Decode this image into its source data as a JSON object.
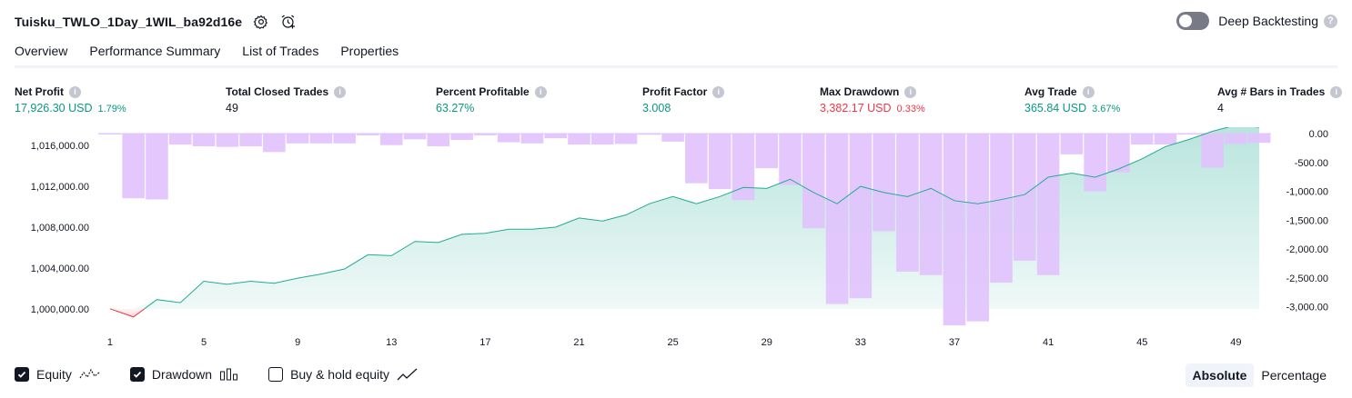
{
  "header": {
    "title": "Tuisku_TWLO_1Day_1WIL_ba92d16e",
    "deep_backtesting_label": "Deep Backtesting"
  },
  "tabs": [
    {
      "label": "Overview",
      "active": true
    },
    {
      "label": "Performance Summary"
    },
    {
      "label": "List of Trades"
    },
    {
      "label": "Properties"
    }
  ],
  "metrics": [
    {
      "label": "Net Profit",
      "value": "17,926.30 USD",
      "pct": "1.79%",
      "color": "#089981"
    },
    {
      "label": "Total Closed Trades",
      "value": "49",
      "pct": "",
      "color": "#131722"
    },
    {
      "label": "Percent Profitable",
      "value": "63.27%",
      "pct": "",
      "color": "#089981"
    },
    {
      "label": "Profit Factor",
      "value": "3.008",
      "pct": "",
      "color": "#089981"
    },
    {
      "label": "Max Drawdown",
      "value": "3,382.17 USD",
      "pct": "0.33%",
      "color": "#f23645"
    },
    {
      "label": "Avg Trade",
      "value": "365.84 USD",
      "pct": "3.67%",
      "color": "#089981"
    },
    {
      "label": "Avg # Bars in Trades",
      "value": "4",
      "pct": "",
      "color": "#131722"
    }
  ],
  "legend": {
    "equity_label": "Equity",
    "drawdown_label": "Drawdown",
    "buyhold_label": "Buy & hold equity"
  },
  "mode": {
    "absolute_label": "Absolute",
    "percentage_label": "Percentage",
    "selected": "Absolute"
  },
  "colors": {
    "equity_line": "#22ab94",
    "equity_loss": "#f23645",
    "drawdown_fill": "#e1c2fd",
    "text": "#131722"
  },
  "chart_data": {
    "type": "line",
    "x_ticks": [
      "1",
      "5",
      "9",
      "13",
      "17",
      "21",
      "25",
      "29",
      "33",
      "37",
      "41",
      "45",
      "49"
    ],
    "equity_yticks": [
      "1,000,000.00",
      "1,004,000.00",
      "1,008,000.00",
      "1,012,000.00",
      "1,016,000.00"
    ],
    "drawdown_yticks": [
      "0.00",
      "-500.00",
      "-1,000.00",
      "-1,500.00",
      "-2,000.00",
      "-2,500.00",
      "-3,000.00"
    ],
    "equity_ylim": [
      998200,
      1017800
    ],
    "drawdown_ylim": [
      -3350,
      110
    ],
    "x_range": [
      0.5,
      50.5
    ],
    "series": [
      {
        "name": "Equity",
        "x": [
          1,
          2,
          3,
          4,
          5,
          6,
          7,
          8,
          9,
          10,
          11,
          12,
          13,
          14,
          15,
          16,
          17,
          18,
          19,
          20,
          21,
          22,
          23,
          24,
          25,
          26,
          27,
          28,
          29,
          30,
          31,
          32,
          33,
          34,
          35,
          36,
          37,
          38,
          39,
          40,
          41,
          42,
          43,
          44,
          45,
          46,
          47,
          48,
          49,
          50
        ],
        "values": [
          1000000,
          999200,
          1000900,
          1000600,
          1002700,
          1002400,
          1002700,
          1002500,
          1003000,
          1003400,
          1003900,
          1005300,
          1005200,
          1006600,
          1006500,
          1007300,
          1007400,
          1007800,
          1007800,
          1008000,
          1008900,
          1008600,
          1009200,
          1010300,
          1011000,
          1010300,
          1011000,
          1011900,
          1011800,
          1012700,
          1011400,
          1010300,
          1012000,
          1011400,
          1011000,
          1011800,
          1010600,
          1010300,
          1010700,
          1011200,
          1012900,
          1013300,
          1012900,
          1013700,
          1014700,
          1015900,
          1016600,
          1017400,
          1018000,
          1017800
        ]
      },
      {
        "name": "Drawdown",
        "x": [
          1,
          2,
          3,
          4,
          5,
          6,
          7,
          8,
          9,
          10,
          11,
          12,
          13,
          14,
          15,
          16,
          17,
          18,
          19,
          20,
          21,
          22,
          23,
          24,
          25,
          26,
          27,
          28,
          29,
          30,
          31,
          32,
          33,
          34,
          35,
          36,
          37,
          38,
          39,
          40,
          41,
          42,
          43,
          44,
          45,
          46,
          47,
          48,
          49,
          50
        ],
        "values": [
          0,
          -1120,
          -1140,
          -190,
          -220,
          -230,
          -220,
          -320,
          -170,
          -170,
          -170,
          -30,
          -200,
          -100,
          -220,
          -110,
          -30,
          -150,
          -170,
          -80,
          -190,
          -190,
          -180,
          -20,
          -140,
          -860,
          -960,
          -1150,
          -600,
          -890,
          -1640,
          -2950,
          -2850,
          -1690,
          -2390,
          -2450,
          -3320,
          -3250,
          -2580,
          -2200,
          -2450,
          -360,
          -1000,
          -670,
          -190,
          -190,
          -10,
          -590,
          -180,
          -160
        ]
      }
    ]
  }
}
